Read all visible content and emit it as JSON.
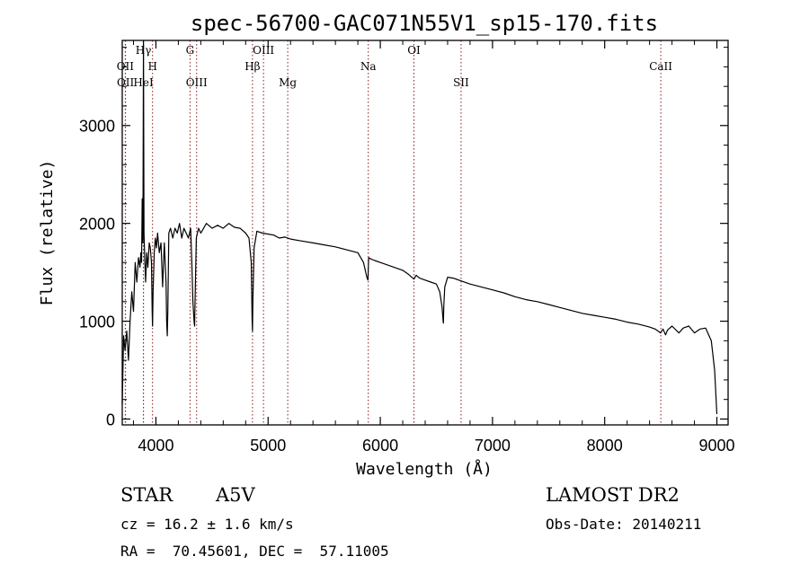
{
  "chart_data": {
    "type": "line",
    "title": "spec-56700-GAC071N55V1_sp15-170.fits",
    "xlabel": "Wavelength (Å)",
    "ylabel": "Flux (relative)",
    "xlim": [
      3700,
      9100
    ],
    "ylim": [
      -60,
      3870
    ],
    "x_ticks": [
      4000,
      5000,
      6000,
      7000,
      8000,
      9000
    ],
    "y_ticks": [
      0,
      1000,
      2000,
      3000
    ],
    "line_color": "#000000",
    "marker_color": "#8b1a1a",
    "spectral_lines": [
      {
        "label": "Hγ",
        "wavelength": 3889,
        "row": 0
      },
      {
        "label": "OII",
        "wavelength": 3727,
        "row": 1
      },
      {
        "label": "H",
        "wavelength": 3970,
        "row": 1
      },
      {
        "label": "OII",
        "wavelength": 3729,
        "row": 2
      },
      {
        "label": "HeI",
        "wavelength": 3889,
        "row": 2
      },
      {
        "label": "G",
        "wavelength": 4304,
        "row": 0
      },
      {
        "label": "OIII",
        "wavelength": 4363,
        "row": 2
      },
      {
        "label": "OIII",
        "wavelength": 4959,
        "row": 0
      },
      {
        "label": "Hβ",
        "wavelength": 4861,
        "row": 1
      },
      {
        "label": "Mg",
        "wavelength": 5175,
        "row": 2
      },
      {
        "label": "Na",
        "wavelength": 5893,
        "row": 1
      },
      {
        "label": "OI",
        "wavelength": 6300,
        "row": 0
      },
      {
        "label": "SII",
        "wavelength": 6720,
        "row": 2
      },
      {
        "label": "CaII",
        "wavelength": 8500,
        "row": 1
      }
    ],
    "series": [
      {
        "x": [
          3700,
          3712,
          3725,
          3740,
          3755,
          3770,
          3785,
          3800,
          3815,
          3830,
          3845,
          3858,
          3866,
          3872,
          3878,
          3884,
          3889,
          3894,
          3900,
          3908,
          3918,
          3928,
          3940,
          3950,
          3960,
          3967,
          3970,
          3975,
          3985,
          3995,
          4005,
          4015,
          4030,
          4045,
          4060,
          4075,
          4090,
          4096,
          4101,
          4106,
          4115,
          4130,
          4150,
          4170,
          4190,
          4210,
          4230,
          4250,
          4270,
          4290,
          4310,
          4320,
          4330,
          4340,
          4345,
          4350,
          4360,
          4380,
          4400,
          4450,
          4500,
          4550,
          4600,
          4650,
          4700,
          4750,
          4800,
          4830,
          4850,
          4858,
          4861,
          4864,
          4875,
          4900,
          4950,
          5000,
          5050,
          5100,
          5150,
          5200,
          5300,
          5400,
          5500,
          5600,
          5700,
          5800,
          5850,
          5880,
          5890,
          5893,
          5896,
          5910,
          5950,
          6000,
          6100,
          6200,
          6250,
          6280,
          6300,
          6320,
          6350,
          6400,
          6450,
          6500,
          6530,
          6550,
          6560,
          6563,
          6566,
          6575,
          6600,
          6650,
          6700,
          6800,
          6900,
          7000,
          7100,
          7200,
          7300,
          7400,
          7500,
          7600,
          7700,
          7800,
          7900,
          8000,
          8100,
          8200,
          8300,
          8400,
          8450,
          8498,
          8520,
          8542,
          8560,
          8600,
          8662,
          8700,
          8750,
          8800,
          8850,
          8900,
          8950,
          8980,
          9000
        ],
        "y": [
          150,
          850,
          700,
          900,
          600,
          1000,
          1300,
          1100,
          1600,
          1400,
          1650,
          1550,
          1700,
          1600,
          2250,
          1800,
          3870,
          1900,
          1650,
          1400,
          1700,
          1550,
          1800,
          1750,
          1600,
          1100,
          950,
          1300,
          1700,
          1850,
          1750,
          1900,
          1700,
          1800,
          1350,
          1800,
          1400,
          1000,
          850,
          1100,
          1900,
          1950,
          1850,
          1950,
          1900,
          2000,
          1850,
          1950,
          1900,
          1850,
          1950,
          1600,
          1200,
          1000,
          950,
          1250,
          1850,
          1950,
          1900,
          2000,
          1950,
          1980,
          1950,
          2000,
          1960,
          1950,
          1900,
          1850,
          1600,
          1000,
          900,
          1200,
          1750,
          1920,
          1900,
          1890,
          1880,
          1850,
          1860,
          1840,
          1820,
          1800,
          1780,
          1760,
          1730,
          1700,
          1600,
          1450,
          1420,
          1530,
          1650,
          1640,
          1620,
          1600,
          1560,
          1520,
          1480,
          1450,
          1430,
          1470,
          1440,
          1420,
          1400,
          1380,
          1300,
          1150,
          1000,
          980,
          1150,
          1350,
          1450,
          1440,
          1420,
          1380,
          1350,
          1320,
          1290,
          1250,
          1220,
          1200,
          1170,
          1140,
          1110,
          1080,
          1060,
          1040,
          1020,
          990,
          970,
          940,
          920,
          880,
          920,
          860,
          910,
          950,
          880,
          930,
          950,
          880,
          920,
          930,
          800,
          500,
          50
        ]
      }
    ]
  },
  "info": {
    "object_class": "STAR",
    "subclass": "A5V",
    "survey": "LAMOST DR2",
    "redshift": "cz = 16.2 ± 1.6 km/s",
    "obs_date": "Obs-Date: 20140211",
    "coordinates": "RA =  70.45601, DEC =  57.11005"
  }
}
